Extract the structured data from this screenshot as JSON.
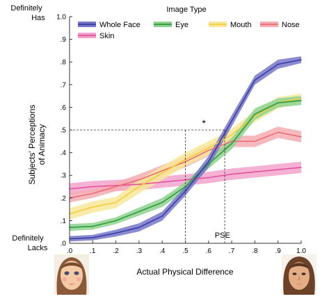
{
  "chart_data": {
    "type": "line",
    "legend_title": "Image Type",
    "legend_position": "top",
    "xlabel": "Actual Physical Difference",
    "ylabel": "Subjects' Perceptions of Animacy",
    "ylabel_lines": [
      "Subjects' Perceptions",
      "of Animacy"
    ],
    "xlim": [
      0,
      1
    ],
    "ylim": [
      0,
      1
    ],
    "x_ticks": [
      ".0",
      ".1",
      ".2",
      ".3",
      ".4",
      ".5",
      ".6",
      ".7",
      ".8",
      ".9",
      "1.0"
    ],
    "y_ticks": [
      ".0",
      ".1",
      ".2",
      ".3",
      ".4",
      ".5",
      ".6",
      ".7",
      ".8",
      ".9",
      "1.0"
    ],
    "y_top_label": [
      "Definitely",
      "Has"
    ],
    "y_bottom_label": [
      "Definitely",
      "Lacks"
    ],
    "grid": false,
    "x": [
      0,
      0.1,
      0.2,
      0.3,
      0.4,
      0.5,
      0.6,
      0.7,
      0.8,
      0.9,
      1.0
    ],
    "series": [
      {
        "name": "Whole Face",
        "line_color": "#3b3aa6",
        "band_color": "#7677c9",
        "values": [
          0.02,
          0.025,
          0.045,
          0.07,
          0.12,
          0.23,
          0.36,
          0.54,
          0.72,
          0.79,
          0.81
        ],
        "error": [
          0.012,
          0.012,
          0.015,
          0.018,
          0.02,
          0.02,
          0.025,
          0.025,
          0.02,
          0.02,
          0.015
        ]
      },
      {
        "name": "Eye",
        "line_color": "#2e9a3e",
        "band_color": "#8fd28f",
        "values": [
          0.07,
          0.075,
          0.1,
          0.14,
          0.18,
          0.25,
          0.35,
          0.44,
          0.57,
          0.62,
          0.63
        ],
        "error": [
          0.015,
          0.015,
          0.015,
          0.018,
          0.02,
          0.02,
          0.02,
          0.025,
          0.025,
          0.02,
          0.02
        ]
      },
      {
        "name": "Mouth",
        "line_color": "#f5cc3c",
        "band_color": "#f8e79a",
        "values": [
          0.13,
          0.16,
          0.18,
          0.25,
          0.31,
          0.37,
          0.42,
          0.48,
          0.56,
          0.62,
          0.64
        ],
        "error": [
          0.025,
          0.025,
          0.025,
          0.03,
          0.03,
          0.03,
          0.03,
          0.025,
          0.025,
          0.025,
          0.02
        ]
      },
      {
        "name": "Nose",
        "line_color": "#ea6d76",
        "band_color": "#f4adb2",
        "values": [
          0.2,
          0.22,
          0.25,
          0.28,
          0.32,
          0.36,
          0.41,
          0.45,
          0.45,
          0.49,
          0.47
        ],
        "error": [
          0.02,
          0.02,
          0.02,
          0.025,
          0.025,
          0.025,
          0.025,
          0.025,
          0.025,
          0.025,
          0.025
        ]
      },
      {
        "name": "Skin",
        "line_color": "#e0539c",
        "band_color": "#f2a3cc",
        "values": [
          0.24,
          0.25,
          0.255,
          0.26,
          0.27,
          0.28,
          0.29,
          0.305,
          0.315,
          0.325,
          0.335
        ],
        "error": [
          0.025,
          0.025,
          0.025,
          0.025,
          0.025,
          0.025,
          0.025,
          0.025,
          0.025,
          0.025,
          0.025
        ]
      }
    ],
    "reference_line": {
      "y": 0.5,
      "x_from": 0.5,
      "x_to": 0.67,
      "vlines_x": [
        0.5,
        0.67
      ]
    },
    "annotations": [
      {
        "text": "*",
        "x": 0.58,
        "y": 0.53
      },
      {
        "text": "PSE",
        "x": 0.66,
        "y": 0.025
      }
    ]
  },
  "faces": {
    "left_icon": "doll-face-image",
    "right_icon": "human-face-image"
  }
}
